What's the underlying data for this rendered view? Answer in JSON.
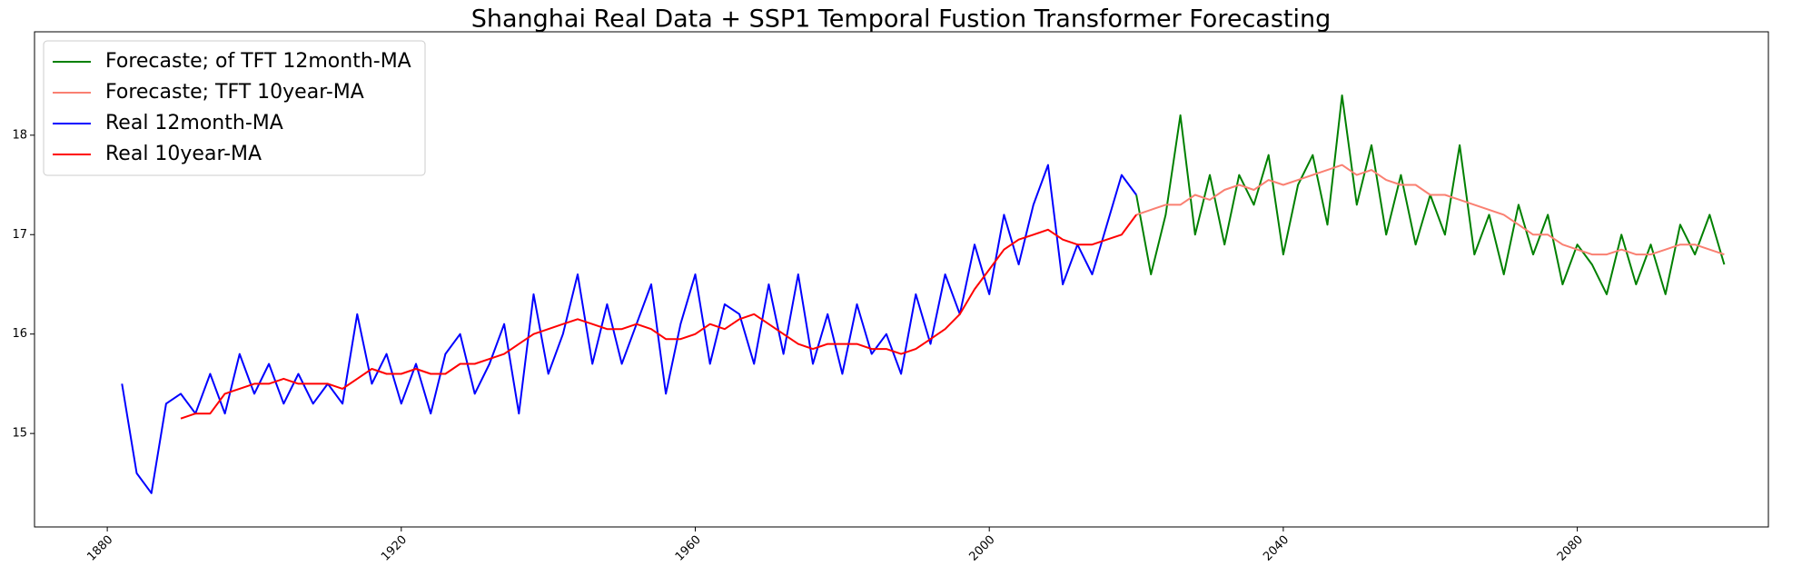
{
  "chart_data": {
    "type": "line",
    "title": "Shanghai Real Data + SSP1 Temporal Fustion Transformer Forecasting",
    "x": [
      1880,
      1882,
      1884,
      1886,
      1888,
      1890,
      1892,
      1894,
      1896,
      1898,
      1900,
      1902,
      1904,
      1906,
      1908,
      1910,
      1912,
      1914,
      1916,
      1918,
      1920,
      1922,
      1924,
      1926,
      1928,
      1930,
      1932,
      1934,
      1936,
      1938,
      1940,
      1942,
      1944,
      1946,
      1948,
      1950,
      1952,
      1954,
      1956,
      1958,
      1960,
      1962,
      1964,
      1966,
      1968,
      1970,
      1972,
      1974,
      1976,
      1978,
      1980,
      1982,
      1984,
      1986,
      1988,
      1990,
      1992,
      1994,
      1996,
      1998,
      2000,
      2002,
      2004,
      2006,
      2008,
      2010,
      2012,
      2014,
      2016,
      2018,
      2020,
      2022,
      2024,
      2026,
      2028,
      2030,
      2032,
      2034,
      2036,
      2038,
      2040,
      2042,
      2044,
      2046,
      2048,
      2050,
      2052,
      2054,
      2056,
      2058,
      2060,
      2062,
      2064,
      2066,
      2068,
      2070,
      2072,
      2074,
      2076,
      2078,
      2080,
      2082,
      2084,
      2086,
      2088,
      2090,
      2092,
      2094,
      2096,
      2098,
      2100
    ],
    "series": [
      {
        "name": "Forecaste; of TFT 12month-MA",
        "color": "#008000",
        "values": [
          null,
          null,
          null,
          null,
          null,
          null,
          null,
          null,
          null,
          null,
          null,
          null,
          null,
          null,
          null,
          null,
          null,
          null,
          null,
          null,
          null,
          null,
          null,
          null,
          null,
          null,
          null,
          null,
          null,
          null,
          null,
          null,
          null,
          null,
          null,
          null,
          null,
          null,
          null,
          null,
          null,
          null,
          null,
          null,
          null,
          null,
          null,
          null,
          null,
          null,
          null,
          null,
          null,
          null,
          null,
          null,
          null,
          null,
          null,
          null,
          null,
          null,
          null,
          null,
          null,
          null,
          null,
          null,
          null,
          null,
          17.4,
          16.6,
          17.2,
          18.2,
          17.0,
          17.6,
          16.9,
          17.6,
          17.3,
          17.8,
          16.8,
          17.5,
          17.8,
          17.1,
          18.4,
          17.3,
          17.9,
          17.0,
          17.6,
          16.9,
          17.4,
          17.0,
          17.9,
          16.8,
          17.2,
          16.6,
          17.3,
          16.8,
          17.2,
          16.5,
          16.9,
          16.7,
          16.4,
          17.0,
          16.5,
          16.9,
          16.4,
          17.1,
          16.8,
          17.2,
          16.7
        ]
      },
      {
        "name": "Forecaste; TFT 10year-MA",
        "color": "#fa8072",
        "values": [
          null,
          null,
          null,
          null,
          null,
          null,
          null,
          null,
          null,
          null,
          null,
          null,
          null,
          null,
          null,
          null,
          null,
          null,
          null,
          null,
          null,
          null,
          null,
          null,
          null,
          null,
          null,
          null,
          null,
          null,
          null,
          null,
          null,
          null,
          null,
          null,
          null,
          null,
          null,
          null,
          null,
          null,
          null,
          null,
          null,
          null,
          null,
          null,
          null,
          null,
          null,
          null,
          null,
          null,
          null,
          null,
          null,
          null,
          null,
          null,
          null,
          null,
          null,
          null,
          null,
          null,
          null,
          null,
          null,
          null,
          17.2,
          17.25,
          17.3,
          17.3,
          17.4,
          17.35,
          17.45,
          17.5,
          17.45,
          17.55,
          17.5,
          17.55,
          17.6,
          17.65,
          17.7,
          17.6,
          17.65,
          17.55,
          17.5,
          17.5,
          17.4,
          17.4,
          17.35,
          17.3,
          17.25,
          17.2,
          17.1,
          17.0,
          17.0,
          16.9,
          16.85,
          16.8,
          16.8,
          16.85,
          16.8,
          16.8,
          16.85,
          16.9,
          16.9,
          16.85,
          16.8
        ]
      },
      {
        "name": "Real 12month-MA",
        "color": "#0000ff",
        "values": [
          null,
          15.5,
          14.6,
          14.4,
          15.3,
          15.4,
          15.2,
          15.6,
          15.2,
          15.8,
          15.4,
          15.7,
          15.3,
          15.6,
          15.3,
          15.5,
          15.3,
          16.2,
          15.5,
          15.8,
          15.3,
          15.7,
          15.2,
          15.8,
          16.0,
          15.4,
          15.7,
          16.1,
          15.2,
          16.4,
          15.6,
          16.0,
          16.6,
          15.7,
          16.3,
          15.7,
          16.1,
          16.5,
          15.4,
          16.1,
          16.6,
          15.7,
          16.3,
          16.2,
          15.7,
          16.5,
          15.8,
          16.6,
          15.7,
          16.2,
          15.6,
          16.3,
          15.8,
          16.0,
          15.6,
          16.4,
          15.9,
          16.6,
          16.2,
          16.9,
          16.4,
          17.2,
          16.7,
          17.3,
          17.7,
          16.5,
          16.9,
          16.6,
          17.1,
          17.6,
          17.4,
          null,
          null,
          null,
          null,
          null,
          null,
          null,
          null,
          null,
          null,
          null,
          null,
          null,
          null,
          null,
          null,
          null,
          null,
          null,
          null,
          null,
          null,
          null,
          null,
          null,
          null,
          null,
          null,
          null,
          null,
          null,
          null,
          null,
          null,
          null,
          null,
          null,
          null,
          null,
          null
        ]
      },
      {
        "name": "Real 10year-MA",
        "color": "#ff0000",
        "values": [
          null,
          null,
          null,
          null,
          null,
          15.15,
          15.2,
          15.2,
          15.4,
          15.45,
          15.5,
          15.5,
          15.55,
          15.5,
          15.5,
          15.5,
          15.45,
          15.55,
          15.65,
          15.6,
          15.6,
          15.65,
          15.6,
          15.6,
          15.7,
          15.7,
          15.75,
          15.8,
          15.9,
          16.0,
          16.05,
          16.1,
          16.15,
          16.1,
          16.05,
          16.05,
          16.1,
          16.05,
          15.95,
          15.95,
          16.0,
          16.1,
          16.05,
          16.15,
          16.2,
          16.1,
          16.0,
          15.9,
          15.85,
          15.9,
          15.9,
          15.9,
          15.85,
          15.85,
          15.8,
          15.85,
          15.95,
          16.05,
          16.2,
          16.45,
          16.65,
          16.85,
          16.95,
          17.0,
          17.05,
          16.95,
          16.9,
          16.9,
          16.95,
          17.0,
          17.2,
          null,
          null,
          null,
          null,
          null,
          null,
          null,
          null,
          null,
          null,
          null,
          null,
          null,
          null,
          null,
          null,
          null,
          null,
          null,
          null,
          null,
          null,
          null,
          null,
          null,
          null,
          null,
          null,
          null,
          null,
          null,
          null,
          null,
          null,
          null,
          null,
          null,
          null,
          null,
          null
        ]
      }
    ],
    "xlim": [
      1870.1,
      2106.0
    ],
    "xticks": [
      1880,
      1920,
      1960,
      2000,
      2040,
      2080
    ],
    "ylim": [
      14.06,
      19.04
    ],
    "yticks": [
      15,
      16,
      17,
      18
    ],
    "grid": false,
    "legend": "upper left"
  }
}
